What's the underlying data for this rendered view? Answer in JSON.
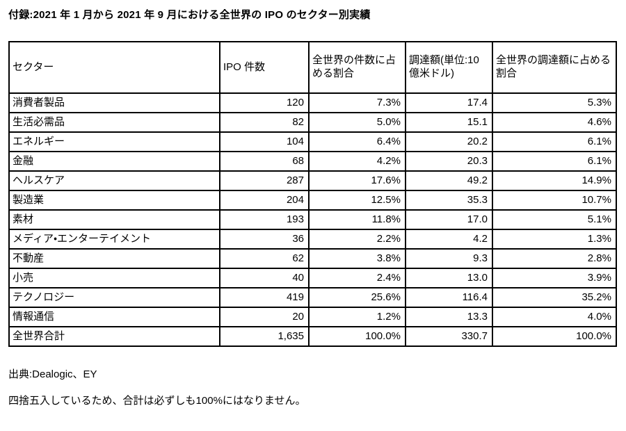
{
  "title": "付録:2021 年 1 月から 2021 年 9 月における全世界の IPO のセクター別実績",
  "table": {
    "columns": [
      {
        "label": "セクター"
      },
      {
        "label": "IPO 件数"
      },
      {
        "label": "全世界の件数に占める割合"
      },
      {
        "label": "調達額(単位:10 億米ドル)"
      },
      {
        "label": "全世界の調達額に占める割合"
      }
    ],
    "rows": [
      [
        "消費者製品",
        "120",
        "7.3%",
        "17.4",
        "5.3%"
      ],
      [
        "生活必需品",
        "82",
        "5.0%",
        "15.1",
        "4.6%"
      ],
      [
        "エネルギー",
        "104",
        "6.4%",
        "20.2",
        "6.1%"
      ],
      [
        "金融",
        "68",
        "4.2%",
        "20.3",
        "6.1%"
      ],
      [
        "ヘルスケア",
        "287",
        "17.6%",
        "49.2",
        "14.9%"
      ],
      [
        "製造業",
        "204",
        "12.5%",
        "35.3",
        "10.7%"
      ],
      [
        "素材",
        "193",
        "11.8%",
        "17.0",
        "5.1%"
      ],
      [
        "メディア・エンターテイメント",
        "36",
        "2.2%",
        "4.2",
        "1.3%"
      ],
      [
        "不動産",
        "62",
        "3.8%",
        "9.3",
        "2.8%"
      ],
      [
        "小売",
        "40",
        "2.4%",
        "13.0",
        "3.9%"
      ],
      [
        "テクノロジー",
        "419",
        "25.6%",
        "116.4",
        "35.2%"
      ],
      [
        "情報通信",
        "20",
        "1.2%",
        "13.3",
        "4.0%"
      ],
      [
        "全世界合計",
        "1,635",
        "100.0%",
        "330.7",
        "100.0%"
      ]
    ]
  },
  "footer": {
    "source": "出典:Dealogic、EY",
    "note": "四捨五入しているため、合計は必ずしも100%にはなりません。"
  },
  "colors": {
    "background": "#ffffff",
    "text": "#000000",
    "border": "#000000"
  }
}
